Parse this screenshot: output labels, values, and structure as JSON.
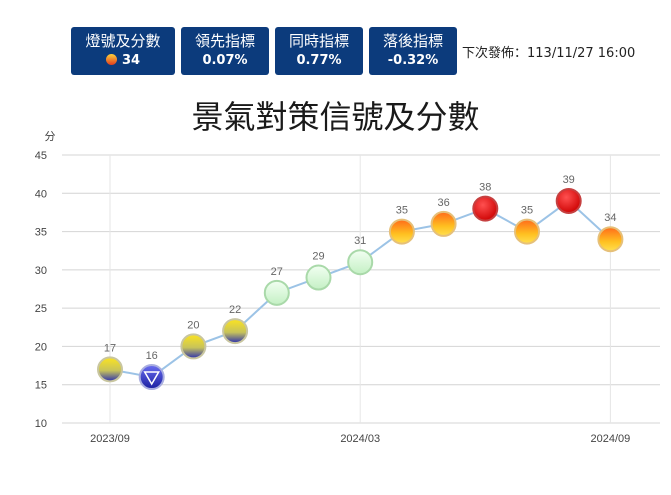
{
  "cards": [
    {
      "label": "燈號及分數",
      "value": "34",
      "icon": "yellow-red-light-icon"
    },
    {
      "label": "領先指標",
      "value": "0.07%"
    },
    {
      "label": "同時指標",
      "value": "0.77%"
    },
    {
      "label": "落後指標",
      "value": "-0.32%"
    }
  ],
  "release": "下次發佈：113/11/27 16:00",
  "colors": {
    "card_bg": "#0c3b7c",
    "line": "#9cc3e6",
    "blue": "#2a2fb0",
    "yellow_blue": "#e0c820",
    "green": "#d4f5d4",
    "yellow_red": "#f5a623",
    "red": "#e00000"
  },
  "chart_data": {
    "type": "line",
    "title": "景氣對策信號及分數",
    "ylabel": "分",
    "ylim": [
      10,
      45
    ],
    "yticks": [
      10,
      15,
      20,
      25,
      30,
      35,
      40,
      45
    ],
    "grid": true,
    "x_tick_labels": [
      {
        "index": 0,
        "label": "2023/09"
      },
      {
        "index": 6,
        "label": "2024/03"
      },
      {
        "index": 12,
        "label": "2024/09"
      }
    ],
    "points": [
      {
        "month": "2023/09",
        "value": 17,
        "signal": "yellow-blue"
      },
      {
        "month": "2023/10",
        "value": 16,
        "signal": "blue"
      },
      {
        "month": "2023/11",
        "value": 20,
        "signal": "yellow-blue"
      },
      {
        "month": "2023/12",
        "value": 22,
        "signal": "yellow-blue"
      },
      {
        "month": "2024/01",
        "value": 27,
        "signal": "green"
      },
      {
        "month": "2024/02",
        "value": 29,
        "signal": "green"
      },
      {
        "month": "2024/03",
        "value": 31,
        "signal": "green"
      },
      {
        "month": "2024/04",
        "value": 35,
        "signal": "yellow-red"
      },
      {
        "month": "2024/05",
        "value": 36,
        "signal": "yellow-red"
      },
      {
        "month": "2024/06",
        "value": 38,
        "signal": "red"
      },
      {
        "month": "2024/07",
        "value": 35,
        "signal": "yellow-red"
      },
      {
        "month": "2024/08",
        "value": 39,
        "signal": "red"
      },
      {
        "month": "2024/09",
        "value": 34,
        "signal": "yellow-red"
      }
    ]
  }
}
